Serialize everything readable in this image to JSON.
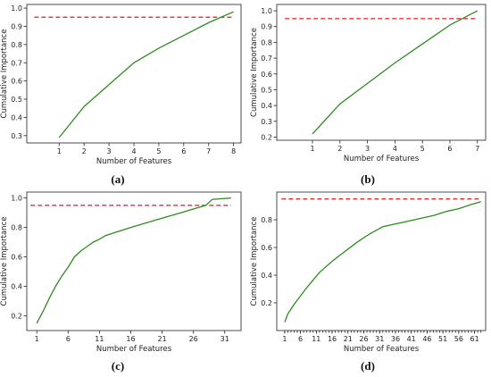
{
  "colors": {
    "curve": "#2e8b1f",
    "threshold": "#e41a1c",
    "axes": "#222222"
  },
  "chart_data": [
    {
      "type": "line",
      "panel_label": "(a)",
      "xlabel": "Number of Features",
      "ylabel": "Cumulative Importance",
      "xlim": [
        -0.3,
        8.3
      ],
      "ylim": [
        0.26,
        1.02
      ],
      "xticks": [
        1,
        2,
        3,
        4,
        5,
        6,
        7,
        8
      ],
      "xtick_labels": [
        "1",
        "2",
        "3",
        "4",
        "5",
        "6",
        "7",
        "8"
      ],
      "yticks": [
        0.3,
        0.4,
        0.5,
        0.6,
        0.7,
        0.8,
        0.9,
        1.0
      ],
      "ytick_labels": [
        "0.3",
        "0.4",
        "0.5",
        "0.6",
        "0.7",
        "0.8",
        "0.9",
        "1.0"
      ],
      "threshold": 0.95,
      "threshold_x": [
        0,
        8
      ],
      "series": [
        {
          "x": [
            1,
            2,
            3,
            4,
            5,
            6,
            7,
            8
          ],
          "y": [
            0.29,
            0.46,
            0.58,
            0.7,
            0.78,
            0.85,
            0.92,
            0.98
          ]
        }
      ]
    },
    {
      "type": "line",
      "panel_label": "(b)",
      "xlabel": "Number of Features",
      "ylabel": "Cumulative Importance",
      "xlim": [
        -0.3,
        7.3
      ],
      "ylim": [
        0.18,
        1.04
      ],
      "xticks": [
        1,
        2,
        3,
        4,
        5,
        6,
        7
      ],
      "xtick_labels": [
        "1",
        "2",
        "3",
        "4",
        "5",
        "6",
        "7"
      ],
      "yticks": [
        0.2,
        0.3,
        0.4,
        0.5,
        0.6,
        0.7,
        0.8,
        0.9,
        1.0
      ],
      "ytick_labels": [
        "0.2",
        "0.3",
        "0.4",
        "0.5",
        "0.6",
        "0.7",
        "0.8",
        "0.9",
        "1.0"
      ],
      "threshold": 0.95,
      "threshold_x": [
        0,
        7
      ],
      "series": [
        {
          "x": [
            1,
            2,
            3,
            4,
            5,
            6,
            7
          ],
          "y": [
            0.22,
            0.41,
            0.54,
            0.67,
            0.79,
            0.91,
            1.0
          ]
        }
      ]
    },
    {
      "type": "line",
      "panel_label": "(c)",
      "xlabel": "Number of Features",
      "ylabel": "Cumulative Importance",
      "xlim": [
        -0.6,
        33.6
      ],
      "ylim": [
        0.1,
        1.04
      ],
      "xticks": [
        1,
        6,
        11,
        16,
        21,
        26,
        31
      ],
      "xtick_labels": [
        "1",
        "6",
        "11",
        "16",
        "21",
        "26",
        "31"
      ],
      "yticks": [
        0.2,
        0.4,
        0.6,
        0.8,
        1.0
      ],
      "ytick_labels": [
        "0.2",
        "0.4",
        "0.6",
        "0.8",
        "1.0"
      ],
      "threshold": 0.95,
      "threshold_x": [
        0,
        32
      ],
      "series": [
        {
          "x": [
            1,
            2,
            3,
            4,
            5,
            6,
            7,
            8,
            9,
            10,
            11,
            12,
            16,
            20,
            24,
            28,
            29,
            32
          ],
          "y": [
            0.15,
            0.23,
            0.32,
            0.4,
            0.47,
            0.53,
            0.6,
            0.64,
            0.67,
            0.7,
            0.72,
            0.745,
            0.8,
            0.85,
            0.9,
            0.95,
            0.99,
            1.0
          ]
        }
      ]
    },
    {
      "type": "line",
      "panel_label": "(d)",
      "xlabel": "Number of Features",
      "ylabel": "Cumulative Importance",
      "xlim": [
        -1.5,
        64.5
      ],
      "ylim": [
        0.0,
        1.0
      ],
      "xticks": [
        1,
        6,
        11,
        16,
        21,
        26,
        31,
        36,
        41,
        46,
        51,
        56,
        61
      ],
      "xtick_labels": [
        "1",
        "6",
        "11",
        "16",
        "21",
        "26",
        "31",
        "36",
        "41",
        "46",
        "51",
        "56",
        "61"
      ],
      "minor_xticks": [
        1,
        2,
        3,
        4,
        5,
        6,
        7,
        8,
        9,
        10,
        11,
        12,
        13,
        14,
        15,
        16,
        17,
        18,
        19,
        20,
        21,
        22,
        23,
        24,
        25,
        26,
        27,
        28,
        29,
        30,
        31,
        32,
        33,
        34,
        35,
        36,
        37,
        38,
        39,
        40,
        41,
        42,
        43,
        44,
        45,
        46,
        47,
        48,
        49,
        50,
        51,
        52,
        53,
        54,
        55,
        56,
        57,
        58,
        59,
        60,
        61,
        62,
        63
      ],
      "yticks": [
        0.2,
        0.4,
        0.6,
        0.8
      ],
      "ytick_labels": [
        "0.2",
        "0.4",
        "0.6",
        "0.8"
      ],
      "threshold": 0.95,
      "threshold_x": [
        0,
        63
      ],
      "series": [
        {
          "x": [
            1,
            2,
            4,
            8,
            12,
            16,
            20,
            24,
            28,
            32,
            36,
            40,
            44,
            48,
            52,
            56,
            60,
            63
          ],
          "y": [
            0.06,
            0.12,
            0.19,
            0.31,
            0.42,
            0.5,
            0.57,
            0.64,
            0.7,
            0.75,
            0.77,
            0.79,
            0.81,
            0.83,
            0.86,
            0.88,
            0.91,
            0.93
          ]
        }
      ]
    }
  ]
}
